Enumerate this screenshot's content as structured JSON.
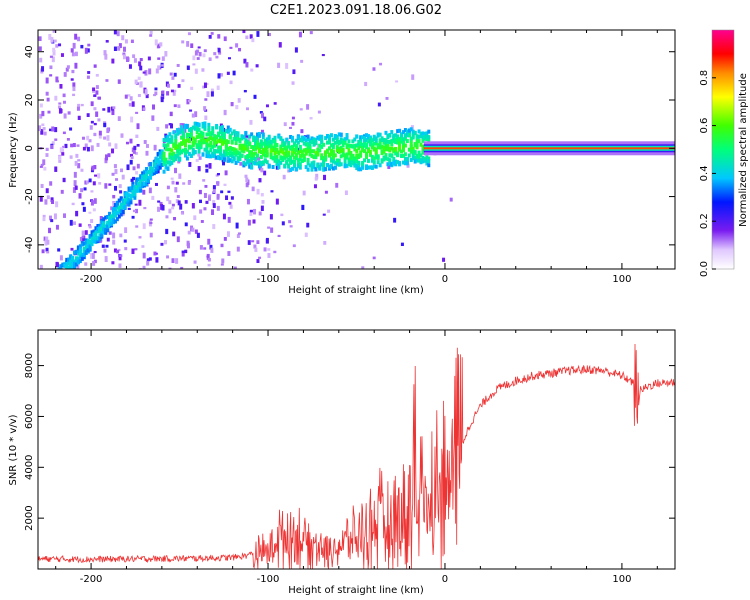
{
  "title": "C2E1.2023.091.18.06.G02",
  "chart_data": [
    {
      "type": "heatmap",
      "title": "C2E1.2023.091.18.06.G02",
      "xlabel": "Height of straight line (km)",
      "ylabel": "Frequency (Hz)",
      "xlim": [
        -230,
        130
      ],
      "ylim": [
        -50,
        49
      ],
      "x_ticks": [
        -200,
        -100,
        0,
        100
      ],
      "y_ticks": [
        -40,
        -20,
        0,
        20,
        40
      ],
      "colorbar": {
        "label": "Normalized spectral amplitude",
        "range": [
          0,
          1
        ],
        "ticks": [
          0.0,
          0.2,
          0.4,
          0.6,
          0.8
        ]
      },
      "ridge_trace": [
        {
          "x": -215,
          "y": -50
        },
        {
          "x": -200,
          "y": -38
        },
        {
          "x": -185,
          "y": -25
        },
        {
          "x": -170,
          "y": -12
        },
        {
          "x": -160,
          "y": -3
        },
        {
          "x": -150,
          "y": 2
        },
        {
          "x": -140,
          "y": 4
        },
        {
          "x": -130,
          "y": 3
        },
        {
          "x": -120,
          "y": 1
        },
        {
          "x": -110,
          "y": -1
        },
        {
          "x": -100,
          "y": -1
        },
        {
          "x": -90,
          "y": -2
        },
        {
          "x": -80,
          "y": -2
        },
        {
          "x": -70,
          "y": -2
        },
        {
          "x": -60,
          "y": -1
        },
        {
          "x": -50,
          "y": -2
        },
        {
          "x": -40,
          "y": -1
        },
        {
          "x": -30,
          "y": 0
        },
        {
          "x": -20,
          "y": 1
        },
        {
          "x": -12,
          "y": 0
        },
        {
          "x": 0,
          "y": 0
        },
        {
          "x": 50,
          "y": 0
        },
        {
          "x": 100,
          "y": 0
        },
        {
          "x": 130,
          "y": 0
        }
      ]
    },
    {
      "type": "line",
      "xlabel": "Height of straight line (km)",
      "ylabel": "SNR (10 * v/v)",
      "xlim": [
        -230,
        130
      ],
      "ylim": [
        0,
        9400
      ],
      "x_ticks": [
        -200,
        -100,
        0,
        100
      ],
      "y_ticks": [
        2000,
        4000,
        6000,
        8000
      ],
      "series": [
        {
          "name": "SNR",
          "color": "#ee3333",
          "x": [
            -230,
            -200,
            -170,
            -140,
            -120,
            -110,
            -100,
            -95,
            -90,
            -85,
            -80,
            -75,
            -70,
            -65,
            -60,
            -55,
            -50,
            -45,
            -40,
            -35,
            -30,
            -25,
            -20,
            -15,
            -10,
            -5,
            0,
            5,
            10,
            15,
            20,
            25,
            30,
            40,
            50,
            60,
            70,
            80,
            90,
            100,
            105,
            110,
            115,
            120,
            130
          ],
          "values": [
            400,
            380,
            400,
            420,
            450,
            550,
            700,
            1200,
            1400,
            1300,
            1200,
            1000,
            900,
            700,
            900,
            1100,
            1200,
            1500,
            1700,
            1800,
            1900,
            2100,
            2400,
            2700,
            2900,
            3100,
            3500,
            4200,
            5000,
            5800,
            6400,
            6800,
            7100,
            7400,
            7600,
            7700,
            7800,
            7850,
            7800,
            7600,
            7400,
            7000,
            7200,
            7300,
            7350
          ]
        }
      ]
    }
  ]
}
